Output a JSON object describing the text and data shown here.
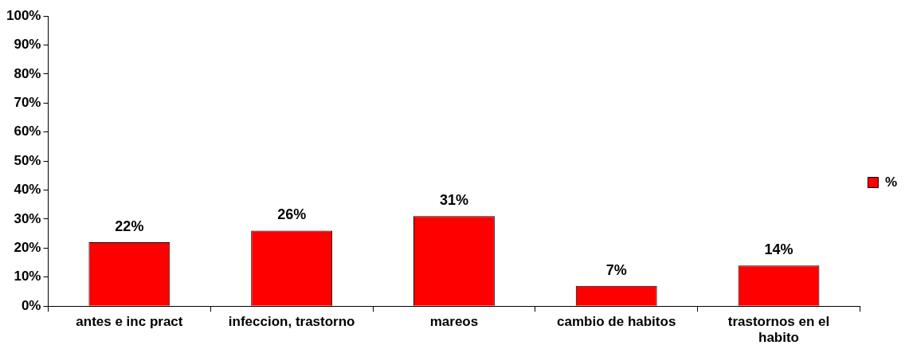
{
  "chart_data": {
    "type": "bar",
    "categories": [
      "antes e inc pract",
      "infeccion, trastorno",
      "mareos",
      "cambio de habitos",
      "trastornos en el habito"
    ],
    "series": [
      {
        "name": "%",
        "color": "#ff0000",
        "values": [
          22,
          26,
          31,
          7,
          14
        ],
        "value_labels": [
          "22%",
          "26%",
          "31%",
          "7%",
          "14%"
        ]
      }
    ],
    "ylim": [
      0,
      100
    ],
    "yticks": [
      {
        "value": 0,
        "label": "0%"
      },
      {
        "value": 10,
        "label": "10%"
      },
      {
        "value": 20,
        "label": "20%"
      },
      {
        "value": 30,
        "label": "30%"
      },
      {
        "value": 40,
        "label": "40%"
      },
      {
        "value": 50,
        "label": "50%"
      },
      {
        "value": 60,
        "label": "60%"
      },
      {
        "value": 70,
        "label": "70%"
      },
      {
        "value": 80,
        "label": "80%"
      },
      {
        "value": 90,
        "label": "90%"
      },
      {
        "value": 100,
        "label": "100%"
      }
    ],
    "grid": false,
    "legend": "right"
  }
}
